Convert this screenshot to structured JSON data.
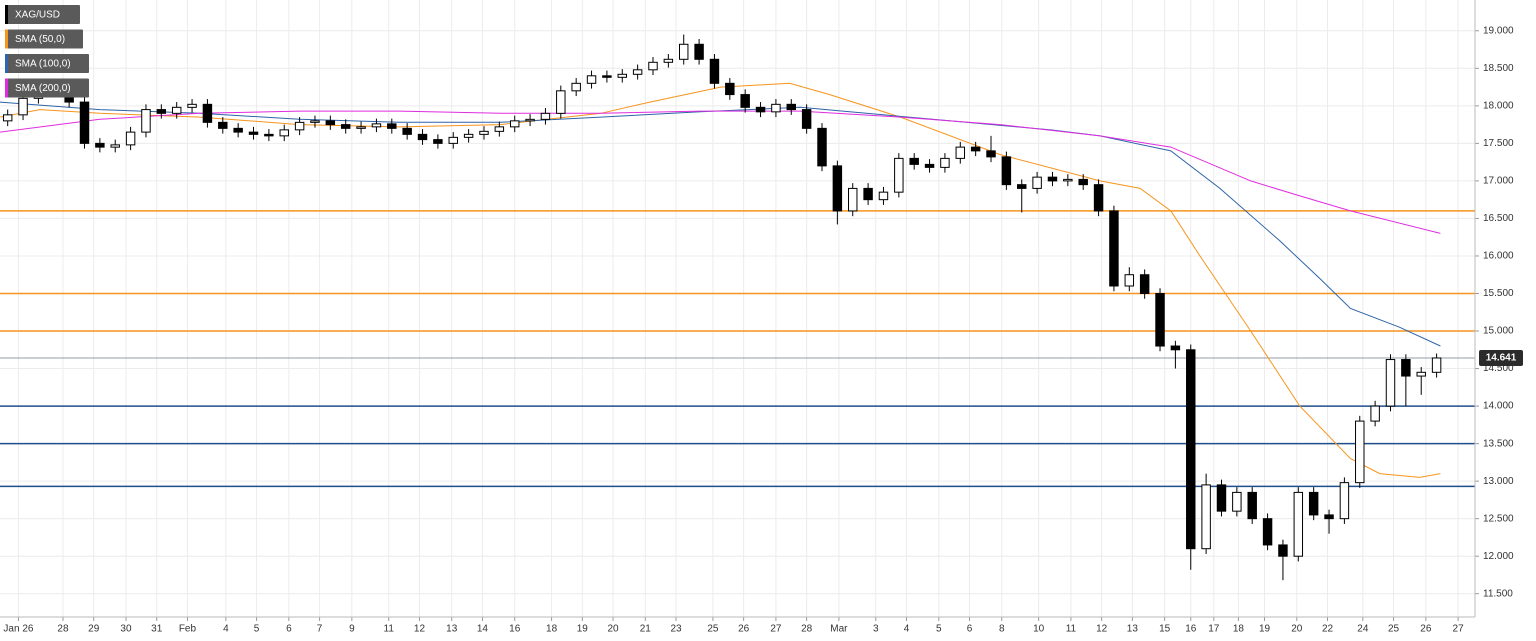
{
  "chart_data": {
    "type": "candlestick",
    "series": [
      {
        "name": "XAG/USD",
        "up_color": "#ffffff",
        "down_color": "#000000",
        "open": [
          17.8,
          17.88,
          18.1,
          18.25,
          18.2,
          18.05,
          17.5,
          17.45,
          17.48,
          17.65,
          17.95,
          17.9,
          17.98,
          18.02,
          17.78,
          17.7,
          17.65,
          17.62,
          17.6,
          17.68,
          17.78,
          17.8,
          17.75,
          17.7,
          17.72,
          17.76,
          17.7,
          17.62,
          17.55,
          17.5,
          17.58,
          17.62,
          17.66,
          17.72,
          17.8,
          17.82,
          17.9,
          18.2,
          18.3,
          18.4,
          18.38,
          18.42,
          18.48,
          18.58,
          18.62,
          18.82,
          18.62,
          18.3,
          18.15,
          17.98,
          17.92,
          18.02,
          17.95,
          17.7,
          17.2,
          16.6,
          16.9,
          16.75,
          16.85,
          17.3,
          17.22,
          17.18,
          17.3,
          17.45,
          17.4,
          17.32,
          16.95,
          16.9,
          17.05,
          17.0,
          17.02,
          16.95,
          16.6,
          15.6,
          15.75,
          15.5,
          14.8,
          14.75,
          12.1,
          12.95,
          12.6,
          12.85,
          12.5,
          12.15,
          12.0,
          12.85,
          12.55,
          12.5,
          12.98,
          13.8,
          14.0,
          14.62,
          14.4,
          14.45
        ],
        "high": [
          17.95,
          18.17,
          18.32,
          18.32,
          18.27,
          18.12,
          17.57,
          17.55,
          17.72,
          18.02,
          18.02,
          18.05,
          18.09,
          18.09,
          17.85,
          17.77,
          17.72,
          17.69,
          17.75,
          17.85,
          17.87,
          17.87,
          17.82,
          17.79,
          17.83,
          17.83,
          17.77,
          17.69,
          17.62,
          17.65,
          17.69,
          17.73,
          17.79,
          17.87,
          17.89,
          17.97,
          18.27,
          18.37,
          18.47,
          18.47,
          18.49,
          18.55,
          18.65,
          18.69,
          18.95,
          18.89,
          18.69,
          18.37,
          18.22,
          18.05,
          18.09,
          18.09,
          18.02,
          17.77,
          17.27,
          16.97,
          16.97,
          16.92,
          17.37,
          17.37,
          17.29,
          17.37,
          17.52,
          17.52,
          17.6,
          17.39,
          17.02,
          17.12,
          17.12,
          17.09,
          17.09,
          17.02,
          16.67,
          15.85,
          15.82,
          15.57,
          14.87,
          14.82,
          13.1,
          13.02,
          12.92,
          12.92,
          12.57,
          12.22,
          12.92,
          12.92,
          12.62,
          13.05,
          13.87,
          14.07,
          14.69,
          14.69,
          14.52,
          14.7
        ],
        "low": [
          17.73,
          17.81,
          18.03,
          18.13,
          17.98,
          17.43,
          17.38,
          17.38,
          17.41,
          17.58,
          17.83,
          17.83,
          17.91,
          17.71,
          17.63,
          17.58,
          17.55,
          17.53,
          17.53,
          17.61,
          17.71,
          17.68,
          17.63,
          17.63,
          17.65,
          17.63,
          17.55,
          17.48,
          17.43,
          17.43,
          17.51,
          17.55,
          17.59,
          17.65,
          17.73,
          17.75,
          17.83,
          18.13,
          18.23,
          18.31,
          18.31,
          18.35,
          18.41,
          18.51,
          18.55,
          18.55,
          18.23,
          18.08,
          17.91,
          17.85,
          17.85,
          17.88,
          17.63,
          17.13,
          16.42,
          16.53,
          16.68,
          16.68,
          16.78,
          17.15,
          17.11,
          17.11,
          17.23,
          17.33,
          17.25,
          16.88,
          16.58,
          16.83,
          16.93,
          16.93,
          16.88,
          16.53,
          15.53,
          15.53,
          15.43,
          14.73,
          14.5,
          11.82,
          12.03,
          12.53,
          12.53,
          12.43,
          12.08,
          11.68,
          11.93,
          12.48,
          12.3,
          12.43,
          12.91,
          13.73,
          13.93,
          14.0,
          14.15,
          14.38
        ],
        "close": [
          17.88,
          18.1,
          18.25,
          18.2,
          18.05,
          17.5,
          17.45,
          17.48,
          17.65,
          17.95,
          17.9,
          17.98,
          18.02,
          17.78,
          17.7,
          17.65,
          17.62,
          17.6,
          17.68,
          17.78,
          17.8,
          17.75,
          17.7,
          17.72,
          17.76,
          17.7,
          17.62,
          17.55,
          17.5,
          17.58,
          17.62,
          17.66,
          17.72,
          17.8,
          17.82,
          17.9,
          18.2,
          18.3,
          18.4,
          18.38,
          18.42,
          18.48,
          18.58,
          18.62,
          18.82,
          18.62,
          18.3,
          18.15,
          17.98,
          17.92,
          18.02,
          17.95,
          17.7,
          17.2,
          16.6,
          16.9,
          16.75,
          16.85,
          17.3,
          17.22,
          17.18,
          17.3,
          17.45,
          17.4,
          17.32,
          16.95,
          16.9,
          17.05,
          17.0,
          17.02,
          16.95,
          16.6,
          15.6,
          15.75,
          15.5,
          14.8,
          14.75,
          12.1,
          12.95,
          12.6,
          12.85,
          12.5,
          12.15,
          12.0,
          12.85,
          12.55,
          12.5,
          12.98,
          13.8,
          14.0,
          14.62,
          14.4,
          14.45,
          14.641
        ]
      }
    ],
    "indicators": [
      {
        "name": "SMA (50,0)",
        "color": "#f7941d",
        "x": [
          0,
          2.6,
          6.5,
          13,
          19.5,
          26,
          32.6,
          39.1,
          42.3,
          46.9,
          51.4,
          54,
          58.6,
          65.1,
          71.6,
          74.2,
          76.2,
          78.1,
          81.4,
          84.6,
          87.9,
          89.8,
          92.4,
          93.75
        ],
        "values": [
          17.85,
          17.95,
          17.9,
          17.85,
          17.75,
          17.72,
          17.75,
          17.9,
          18.05,
          18.25,
          18.3,
          18.15,
          17.85,
          17.35,
          17.0,
          16.9,
          16.6,
          16.0,
          15.0,
          14.0,
          13.3,
          13.1,
          13.05,
          13.1
        ]
      },
      {
        "name": "SMA (100,0)",
        "color": "#2e64a8",
        "x": [
          0,
          6.5,
          13,
          19.5,
          26,
          32.6,
          39.1,
          45.6,
          52.1,
          55.3,
          61.8,
          68.4,
          71.6,
          76.2,
          79.4,
          83.3,
          85.9,
          87.9,
          91.1,
          93.75
        ],
        "values": [
          18.05,
          17.95,
          17.9,
          17.82,
          17.78,
          17.78,
          17.85,
          17.92,
          17.98,
          17.92,
          17.8,
          17.68,
          17.6,
          17.4,
          16.9,
          16.2,
          15.7,
          15.3,
          15.05,
          14.8
        ]
      },
      {
        "name": "SMA (200,0)",
        "color": "#e02ce0",
        "x": [
          0,
          6.5,
          13,
          19.5,
          26,
          32.6,
          39.1,
          45.6,
          52.1,
          58.6,
          65.1,
          71.6,
          76.2,
          81.4,
          84.6,
          87.9,
          93.75
        ],
        "values": [
          17.65,
          17.82,
          17.9,
          17.93,
          17.93,
          17.9,
          17.9,
          17.93,
          17.93,
          17.85,
          17.75,
          17.6,
          17.45,
          17.0,
          16.8,
          16.6,
          16.3
        ]
      }
    ],
    "levels": [
      {
        "value": 16.6,
        "color": "#f7941d"
      },
      {
        "value": 15.5,
        "color": "#f7941d"
      },
      {
        "value": 15.0,
        "color": "#f7941d"
      },
      {
        "value": 14.0,
        "color": "#1f4e8c"
      },
      {
        "value": 13.5,
        "color": "#1f4e8c"
      },
      {
        "value": 12.93,
        "color": "#1f4e8c"
      }
    ],
    "last_price": 14.641,
    "xlim": [
      0,
      96
    ],
    "ylim": [
      11.19,
      19.41
    ],
    "grid": true,
    "yticks": [
      {
        "value": 11.5,
        "label": "11.500"
      },
      {
        "value": 12,
        "label": "12.000"
      },
      {
        "value": 12.5,
        "label": "12.500"
      },
      {
        "value": 13,
        "label": "13.000"
      },
      {
        "value": 13.5,
        "label": "13.500"
      },
      {
        "value": 14,
        "label": "14.000"
      },
      {
        "value": 14.5,
        "label": "14.500"
      },
      {
        "value": 15,
        "label": "15.000"
      },
      {
        "value": 15.5,
        "label": "15.500"
      },
      {
        "value": 16,
        "label": "16.000"
      },
      {
        "value": 16.5,
        "label": "16.500"
      },
      {
        "value": 17,
        "label": "17.000"
      },
      {
        "value": 17.5,
        "label": "17.500"
      },
      {
        "value": 18,
        "label": "18.000"
      },
      {
        "value": 18.5,
        "label": "18.500"
      },
      {
        "value": 19,
        "label": "19.000"
      }
    ],
    "xticks": [
      {
        "value": 1.2,
        "label": "Jan 26"
      },
      {
        "value": 4.1,
        "label": "28"
      },
      {
        "value": 6.1,
        "label": "29"
      },
      {
        "value": 8.2,
        "label": "30"
      },
      {
        "value": 10.2,
        "label": "31"
      },
      {
        "value": 12.2,
        "label": "Feb"
      },
      {
        "value": 14.7,
        "label": "4"
      },
      {
        "value": 16.7,
        "label": "5"
      },
      {
        "value": 18.8,
        "label": "6"
      },
      {
        "value": 20.8,
        "label": "7"
      },
      {
        "value": 22.9,
        "label": "9"
      },
      {
        "value": 25.3,
        "label": "11"
      },
      {
        "value": 27.3,
        "label": "12"
      },
      {
        "value": 29.4,
        "label": "13"
      },
      {
        "value": 31.4,
        "label": "14"
      },
      {
        "value": 33.5,
        "label": "16"
      },
      {
        "value": 35.9,
        "label": "18"
      },
      {
        "value": 37.9,
        "label": "19"
      },
      {
        "value": 39.9,
        "label": "20"
      },
      {
        "value": 42.0,
        "label": "21"
      },
      {
        "value": 44.0,
        "label": "23"
      },
      {
        "value": 46.4,
        "label": "25"
      },
      {
        "value": 48.4,
        "label": "26"
      },
      {
        "value": 50.5,
        "label": "27"
      },
      {
        "value": 52.5,
        "label": "28"
      },
      {
        "value": 54.6,
        "label": "Mar"
      },
      {
        "value": 57.0,
        "label": "3"
      },
      {
        "value": 59.0,
        "label": "4"
      },
      {
        "value": 61.1,
        "label": "5"
      },
      {
        "value": 63.1,
        "label": "6"
      },
      {
        "value": 65.2,
        "label": "8"
      },
      {
        "value": 67.6,
        "label": "10"
      },
      {
        "value": 69.7,
        "label": "11"
      },
      {
        "value": 71.7,
        "label": "12"
      },
      {
        "value": 73.7,
        "label": "13"
      },
      {
        "value": 75.8,
        "label": "15"
      },
      {
        "value": 77.5,
        "label": "16"
      },
      {
        "value": 79.0,
        "label": "17"
      },
      {
        "value": 80.6,
        "label": "18"
      },
      {
        "value": 82.3,
        "label": "19"
      },
      {
        "value": 84.4,
        "label": "20"
      },
      {
        "value": 86.4,
        "label": "22"
      },
      {
        "value": 88.7,
        "label": "24"
      },
      {
        "value": 90.7,
        "label": "25"
      },
      {
        "value": 92.8,
        "label": "26"
      },
      {
        "value": 94.9,
        "label": "27"
      }
    ]
  }
}
